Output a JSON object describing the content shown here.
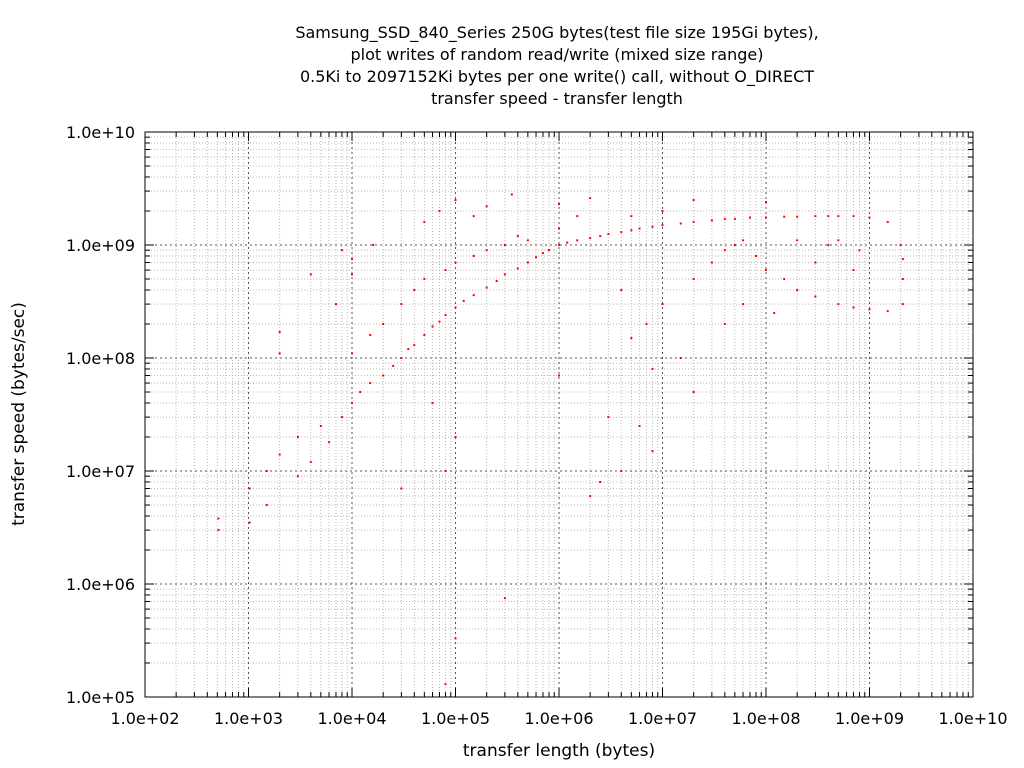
{
  "chart_data": {
    "type": "scatter",
    "title": [
      "Samsung_SSD_840_Series 250G bytes(test file size 195Gi bytes),",
      "plot writes of random read/write (mixed size range)",
      "0.5Ki to 2097152Ki bytes per one write() call, without O_DIRECT",
      "transfer speed - transfer length"
    ],
    "xlabel": "transfer length (bytes)",
    "ylabel": "transfer speed (bytes/sec)",
    "x_scale": "log",
    "y_scale": "log",
    "xlim": [
      100,
      10000000000
    ],
    "ylim": [
      100000,
      10000000000
    ],
    "x_ticks": [
      "1.0e+02",
      "1.0e+03",
      "1.0e+04",
      "1.0e+05",
      "1.0e+06",
      "1.0e+07",
      "1.0e+08",
      "1.0e+09",
      "1.0e+10"
    ],
    "y_ticks": [
      "1.0e+05",
      "1.0e+06",
      "1.0e+07",
      "1.0e+08",
      "1.0e+09",
      "1.0e+10"
    ],
    "grid": true,
    "legend": "none",
    "point_color": "#ff0000",
    "series": [
      {
        "points": [
          [
            512,
            3000000
          ],
          [
            512,
            3800000
          ],
          [
            1024,
            3500000
          ],
          [
            1024,
            7000000
          ],
          [
            1500,
            5000000
          ],
          [
            1500,
            10000000
          ],
          [
            2000,
            14000000
          ],
          [
            2000,
            110000000
          ],
          [
            2000,
            170000000
          ],
          [
            3000,
            9000000
          ],
          [
            3000,
            20000000
          ],
          [
            4000,
            12000000
          ],
          [
            4000,
            550000000
          ],
          [
            5000,
            25000000
          ],
          [
            6000,
            18000000
          ],
          [
            7000,
            300000000
          ],
          [
            8000,
            30000000
          ],
          [
            8000,
            900000000
          ],
          [
            10000,
            40000000
          ],
          [
            10000,
            110000000
          ],
          [
            10000,
            550000000
          ],
          [
            10000,
            750000000
          ],
          [
            12000,
            50000000
          ],
          [
            15000,
            60000000
          ],
          [
            15000,
            160000000
          ],
          [
            16000,
            1000000000
          ],
          [
            20000,
            70000000
          ],
          [
            20000,
            200000000
          ],
          [
            25000,
            85000000
          ],
          [
            30000,
            100000000
          ],
          [
            30000,
            300000000
          ],
          [
            35000,
            120000000
          ],
          [
            40000,
            130000000
          ],
          [
            40000,
            400000000
          ],
          [
            50000,
            160000000
          ],
          [
            50000,
            500000000
          ],
          [
            50000,
            1600000000
          ],
          [
            60000,
            190000000
          ],
          [
            70000,
            210000000
          ],
          [
            70000,
            2000000000
          ],
          [
            80000,
            240000000
          ],
          [
            80000,
            600000000
          ],
          [
            100000,
            280000000
          ],
          [
            100000,
            700000000
          ],
          [
            100000,
            2500000000
          ],
          [
            120000,
            320000000
          ],
          [
            150000,
            360000000
          ],
          [
            150000,
            800000000
          ],
          [
            150000,
            1800000000
          ],
          [
            200000,
            420000000
          ],
          [
            200000,
            900000000
          ],
          [
            200000,
            2200000000
          ],
          [
            250000,
            480000000
          ],
          [
            300000,
            550000000
          ],
          [
            300000,
            1000000000
          ],
          [
            350000,
            2800000000
          ],
          [
            400000,
            620000000
          ],
          [
            400000,
            1200000000
          ],
          [
            500000,
            700000000
          ],
          [
            500000,
            1100000000
          ],
          [
            600000,
            780000000
          ],
          [
            700000,
            850000000
          ],
          [
            800000,
            900000000
          ],
          [
            1000000,
            1000000000
          ],
          [
            1000000,
            1400000000
          ],
          [
            1000000,
            2300000000
          ],
          [
            1200000,
            1050000000
          ],
          [
            1500000,
            1100000000
          ],
          [
            1500000,
            1800000000
          ],
          [
            2000000,
            1150000000
          ],
          [
            2000000,
            2600000000
          ],
          [
            2500000,
            1200000000
          ],
          [
            3000000,
            1250000000
          ],
          [
            4000000,
            1300000000
          ],
          [
            5000000,
            1350000000
          ],
          [
            5000000,
            1800000000
          ],
          [
            6000000,
            1400000000
          ],
          [
            8000000,
            1450000000
          ],
          [
            10000000,
            1500000000
          ],
          [
            10000000,
            2000000000
          ],
          [
            15000000,
            1550000000
          ],
          [
            20000000,
            1600000000
          ],
          [
            20000000,
            2500000000
          ],
          [
            30000000,
            1650000000
          ],
          [
            40000000,
            1700000000
          ],
          [
            50000000,
            1700000000
          ],
          [
            70000000,
            1750000000
          ],
          [
            100000000,
            1750000000
          ],
          [
            100000000,
            2400000000
          ],
          [
            150000000,
            1780000000
          ],
          [
            200000000,
            1780000000
          ],
          [
            300000000,
            1800000000
          ],
          [
            400000000,
            1800000000
          ],
          [
            500000000,
            1800000000
          ],
          [
            700000000,
            1800000000
          ],
          [
            1000000000,
            1750000000
          ],
          [
            1500000000,
            1600000000
          ],
          [
            2000000000,
            1000000000
          ],
          [
            2100000000,
            750000000
          ],
          [
            2100000000,
            500000000
          ],
          [
            2100000000,
            300000000
          ],
          [
            1500000000,
            260000000
          ],
          [
            1000000000,
            270000000
          ],
          [
            700000000,
            280000000
          ],
          [
            500000000,
            300000000
          ],
          [
            300000000,
            350000000
          ],
          [
            200000000,
            400000000
          ],
          [
            50000000,
            1000000000
          ],
          [
            60000000,
            1100000000
          ],
          [
            40000000,
            900000000
          ],
          [
            30000000,
            700000000
          ],
          [
            20000000,
            500000000
          ],
          [
            10000000,
            300000000
          ],
          [
            7000000,
            200000000
          ],
          [
            5000000,
            150000000
          ],
          [
            15000000,
            100000000
          ],
          [
            20000000,
            50000000
          ],
          [
            8000000,
            80000000
          ],
          [
            4000000,
            400000000
          ],
          [
            3000000,
            30000000
          ],
          [
            2000000,
            6000000
          ],
          [
            300000,
            750000
          ],
          [
            100000,
            330000
          ],
          [
            80000,
            130000
          ],
          [
            100000,
            20000000
          ],
          [
            80000,
            10000000
          ],
          [
            60000,
            40000000
          ],
          [
            30000,
            7000000
          ],
          [
            1000000,
            70000000
          ],
          [
            6000000,
            25000000
          ],
          [
            8000000,
            15000000
          ],
          [
            2500000,
            8000000
          ],
          [
            4000000,
            10000000
          ],
          [
            700000000,
            600000000
          ],
          [
            800000000,
            900000000
          ],
          [
            400000000,
            1000000000
          ],
          [
            500000000,
            1100000000
          ],
          [
            300000000,
            700000000
          ],
          [
            200000000,
            1100000000
          ],
          [
            150000000,
            500000000
          ],
          [
            100000000,
            600000000
          ],
          [
            80000000,
            800000000
          ],
          [
            60000000,
            300000000
          ],
          [
            40000000,
            200000000
          ],
          [
            120000000,
            250000000
          ]
        ]
      }
    ]
  }
}
